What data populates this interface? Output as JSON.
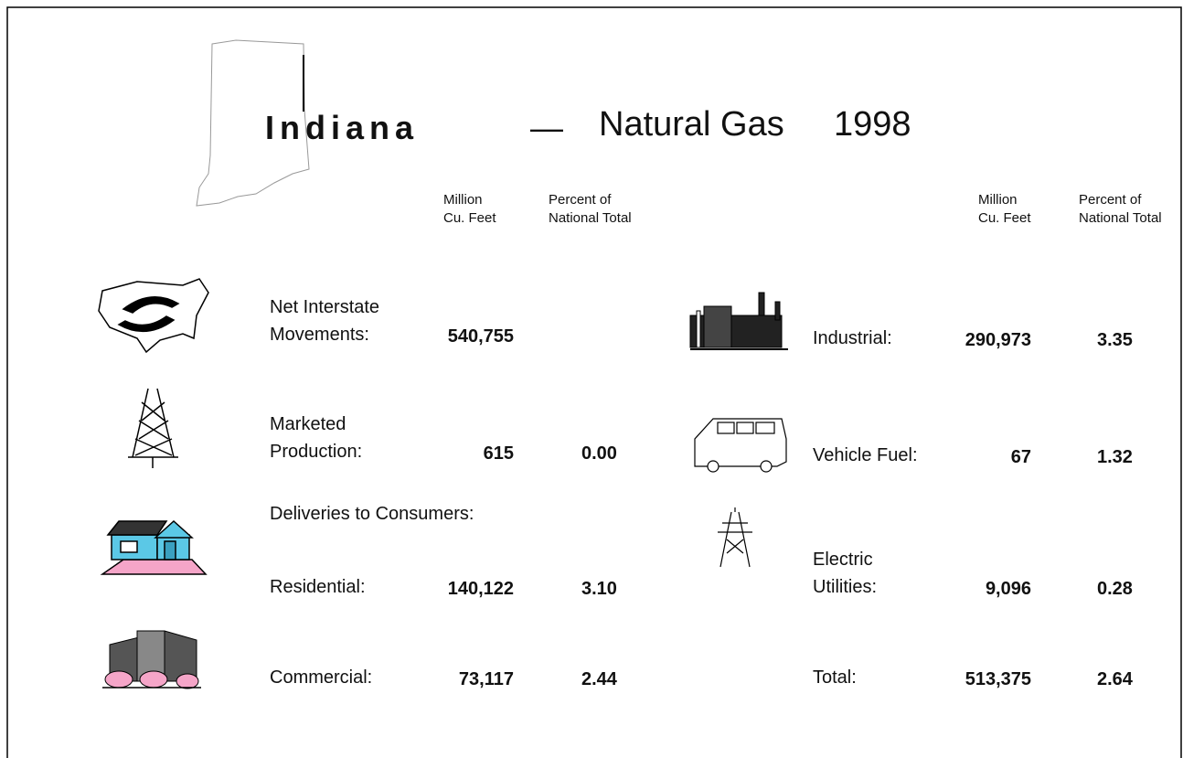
{
  "header": {
    "state": "Indiana",
    "dash": "—",
    "title": "Natural Gas",
    "year": "1998"
  },
  "column_headers": {
    "left": {
      "volume": [
        "Million",
        "Cu. Feet"
      ],
      "percent": [
        "Percent of",
        "National Total"
      ]
    },
    "right": {
      "volume": [
        "Million",
        "Cu. Feet"
      ],
      "percent": [
        "Percent of",
        "National Total"
      ]
    }
  },
  "left_rows": [
    {
      "label": [
        "Net Interstate",
        "Movements:"
      ],
      "volume": "540,755"
    },
    {
      "label": [
        "Marketed",
        "Production:"
      ],
      "volume": "615",
      "percent": "0.00"
    },
    {
      "label": [
        "Residential:"
      ],
      "volume": "140,122",
      "percent": "3.10"
    },
    {
      "label": [
        "Commercial:"
      ],
      "volume": "73,117",
      "percent": "2.44"
    }
  ],
  "section_label": "Deliveries to Consumers:",
  "right_rows": [
    {
      "label": [
        "Industrial:"
      ],
      "volume": "290,973",
      "percent": "3.35"
    },
    {
      "label": [
        "Vehicle Fuel:"
      ],
      "volume": "67",
      "percent": "1.32"
    },
    {
      "label": [
        "Electric",
        "Utilities:"
      ],
      "volume": "9,096",
      "percent": "0.28"
    },
    {
      "label": [
        "Total:"
      ],
      "volume": "513,375",
      "percent": "2.64"
    }
  ]
}
